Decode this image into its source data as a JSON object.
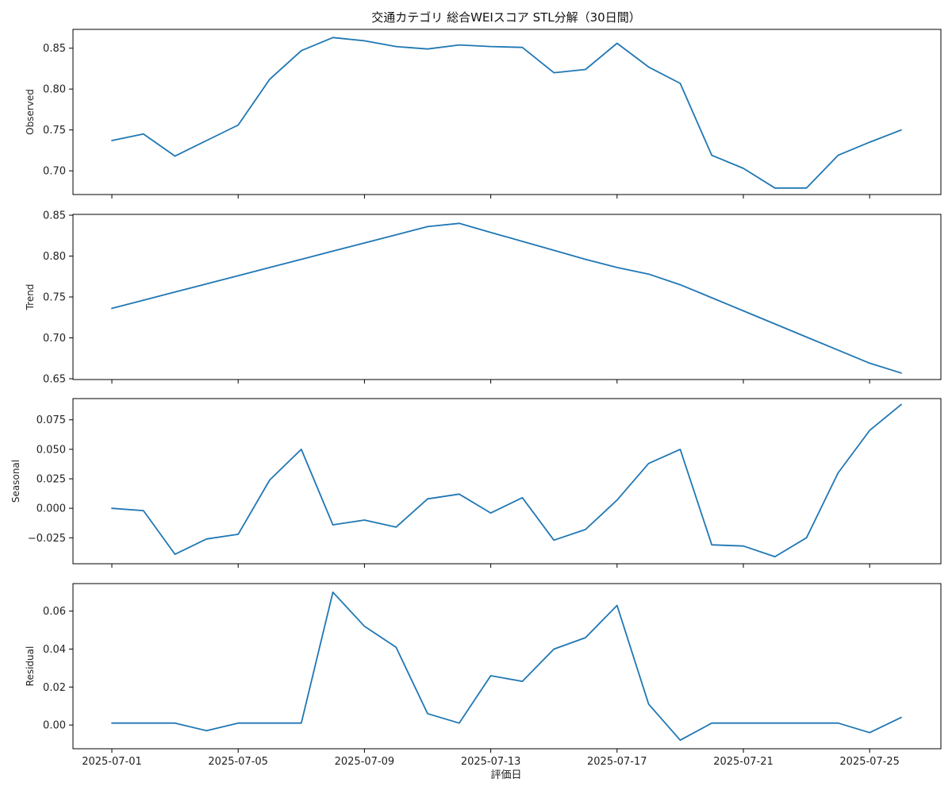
{
  "chart_data": {
    "type": "line",
    "title": "交通カテゴリ 総合WEIスコア STL分解（30日間）",
    "xlabel": "評価日",
    "grid": false,
    "x": [
      "2025-07-01",
      "2025-07-02",
      "2025-07-03",
      "2025-07-04",
      "2025-07-05",
      "2025-07-06",
      "2025-07-07",
      "2025-07-08",
      "2025-07-09",
      "2025-07-10",
      "2025-07-11",
      "2025-07-12",
      "2025-07-13",
      "2025-07-14",
      "2025-07-15",
      "2025-07-16",
      "2025-07-17",
      "2025-07-18",
      "2025-07-19",
      "2025-07-20",
      "2025-07-21",
      "2025-07-22",
      "2025-07-23",
      "2025-07-24",
      "2025-07-25",
      "2025-07-26"
    ],
    "xticks": [
      "2025-07-01",
      "2025-07-05",
      "2025-07-09",
      "2025-07-13",
      "2025-07-17",
      "2025-07-21",
      "2025-07-25"
    ],
    "color": "#1f77b4",
    "panels": [
      {
        "ylabel": "Observed",
        "ylim": [
          0.671,
          0.873
        ],
        "yticks": [
          "0.70",
          "0.75",
          "0.80",
          "0.85"
        ],
        "ytick_values": [
          0.7,
          0.75,
          0.8,
          0.85
        ],
        "values": [
          0.737,
          0.745,
          0.718,
          0.737,
          0.756,
          0.812,
          0.847,
          0.863,
          0.859,
          0.852,
          0.849,
          0.854,
          0.852,
          0.851,
          0.82,
          0.824,
          0.856,
          0.827,
          0.807,
          0.719,
          0.703,
          0.679,
          0.679,
          0.719,
          0.735,
          0.75
        ]
      },
      {
        "ylabel": "Trend",
        "ylim": [
          0.649,
          0.851
        ],
        "yticks": [
          "0.65",
          "0.70",
          "0.75",
          "0.80",
          "0.85"
        ],
        "ytick_values": [
          0.65,
          0.7,
          0.75,
          0.8,
          0.85
        ],
        "values": [
          0.736,
          0.746,
          0.756,
          0.766,
          0.776,
          0.786,
          0.796,
          0.806,
          0.816,
          0.826,
          0.836,
          0.84,
          0.829,
          0.818,
          0.807,
          0.796,
          0.786,
          0.778,
          0.765,
          0.749,
          0.733,
          0.717,
          0.701,
          0.685,
          0.669,
          0.657
        ]
      },
      {
        "ylabel": "Seasonal",
        "ylim": [
          -0.047,
          0.093
        ],
        "yticks": [
          "−0.025",
          "0.000",
          "0.025",
          "0.050",
          "0.075"
        ],
        "ytick_values": [
          -0.025,
          0.0,
          0.025,
          0.05,
          0.075
        ],
        "values": [
          0.0,
          -0.002,
          -0.039,
          -0.026,
          -0.022,
          0.024,
          0.05,
          -0.014,
          -0.01,
          -0.016,
          0.008,
          0.012,
          -0.004,
          0.009,
          -0.027,
          -0.018,
          0.007,
          0.038,
          0.05,
          -0.031,
          -0.032,
          -0.041,
          -0.025,
          0.03,
          0.066,
          0.088
        ]
      },
      {
        "ylabel": "Residual",
        "ylim": [
          -0.0125,
          0.0745
        ],
        "yticks": [
          "0.00",
          "0.02",
          "0.04",
          "0.06"
        ],
        "ytick_values": [
          0.0,
          0.02,
          0.04,
          0.06
        ],
        "values": [
          0.001,
          0.001,
          0.001,
          -0.003,
          0.001,
          0.001,
          0.001,
          0.07,
          0.052,
          0.041,
          0.006,
          0.001,
          0.026,
          0.023,
          0.04,
          0.046,
          0.063,
          0.011,
          -0.008,
          0.001,
          0.001,
          0.001,
          0.001,
          0.001,
          -0.004,
          0.004
        ]
      }
    ]
  }
}
